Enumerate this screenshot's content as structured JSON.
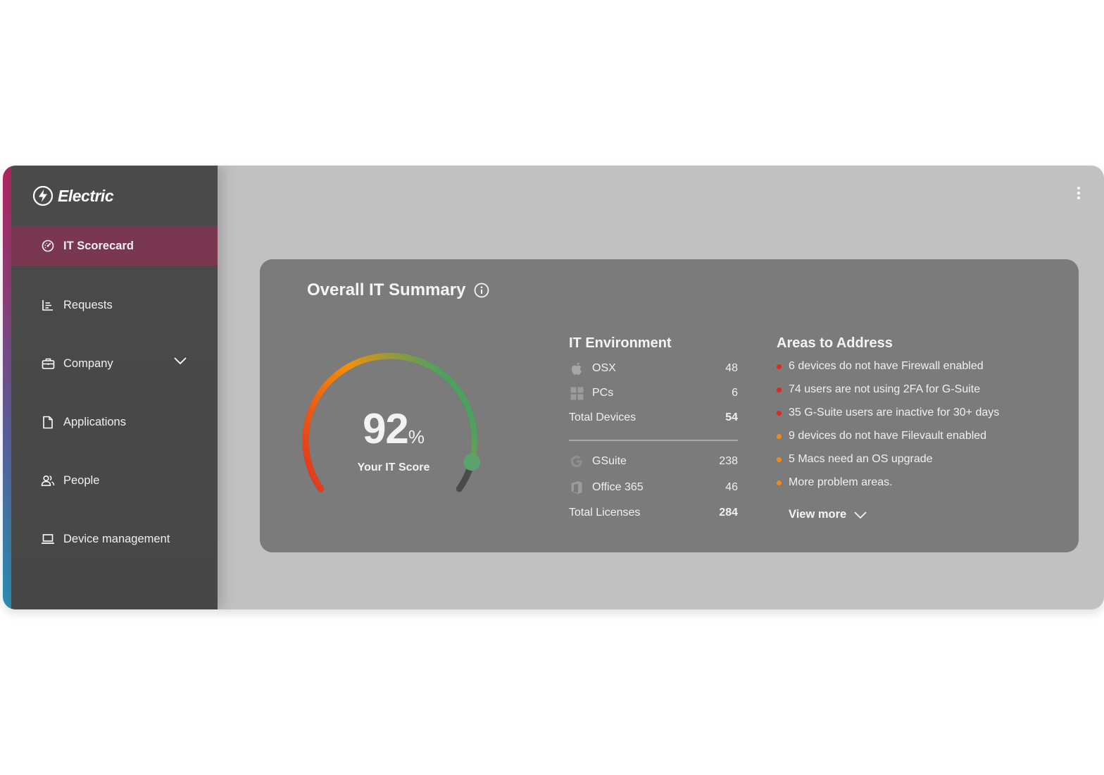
{
  "app": {
    "name": "Electric"
  },
  "sidebar": {
    "items": [
      {
        "label": "IT Scorecard",
        "icon": "gauge-icon",
        "active": true
      },
      {
        "label": "Requests",
        "icon": "bar-chart-icon"
      },
      {
        "label": "Company",
        "icon": "briefcase-icon",
        "expandable": true
      },
      {
        "label": "Applications",
        "icon": "document-icon"
      },
      {
        "label": "People",
        "icon": "people-icon"
      },
      {
        "label": "Device management",
        "icon": "laptop-icon"
      }
    ]
  },
  "header": {
    "menu_icon": "kebab-menu-icon"
  },
  "summary": {
    "title": "Overall IT Summary",
    "info_icon": "info-icon",
    "score": {
      "value": "92",
      "unit": "%",
      "label": "Your IT Score",
      "fraction": 0.92
    },
    "environment": {
      "title": "IT Environment",
      "devices": [
        {
          "name": "OSX",
          "icon": "apple-icon",
          "count": "48"
        },
        {
          "name": "PCs",
          "icon": "windows-icon",
          "count": "6"
        }
      ],
      "total_devices": {
        "label": "Total Devices",
        "value": "54"
      },
      "licenses": [
        {
          "name": "GSuite",
          "icon": "google-icon",
          "count": "238"
        },
        {
          "name": "Office 365",
          "icon": "office-icon",
          "count": "46"
        }
      ],
      "total_licenses": {
        "label": "Total Licenses",
        "value": "284"
      }
    },
    "areas": {
      "title": "Areas to Address",
      "items": [
        {
          "text": "6 devices do not have Firewall enabled",
          "severity": "high"
        },
        {
          "text": "74 users are not using 2FA for G-Suite",
          "severity": "high"
        },
        {
          "text": "35 G-Suite users are inactive for 30+ days",
          "severity": "high"
        },
        {
          "text": "9 devices do not have Filevault enabled",
          "severity": "medium"
        },
        {
          "text": "5 Macs need an OS upgrade",
          "severity": "medium"
        },
        {
          "text": "More problem areas.",
          "severity": "medium"
        }
      ],
      "view_more": "View more"
    }
  },
  "colors": {
    "active_nav": "#7a3750",
    "high_severity": "#e5261f",
    "medium_severity": "#f08a10",
    "gauge_start": "#e0311e",
    "gauge_mid": "#f3900b",
    "gauge_end": "#4fa060"
  }
}
